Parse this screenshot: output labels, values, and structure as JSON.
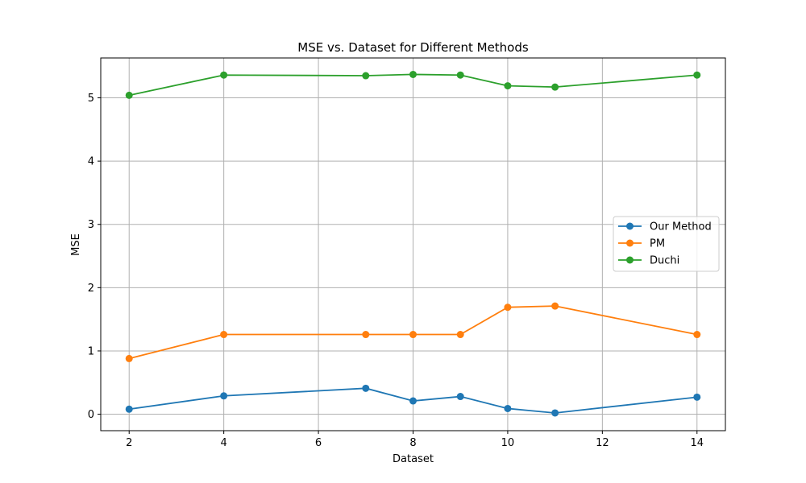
{
  "chart_data": {
    "type": "line",
    "title": "MSE vs. Dataset for Different Methods",
    "xlabel": "Dataset",
    "ylabel": "MSE",
    "x": [
      2,
      4,
      7,
      8,
      9,
      10,
      11,
      14
    ],
    "xticks": [
      2,
      4,
      6,
      8,
      10,
      12,
      14
    ],
    "yticks": [
      0,
      1,
      2,
      3,
      4,
      5
    ],
    "xlim": [
      1.4,
      14.6
    ],
    "ylim": [
      -0.26,
      5.63
    ],
    "grid": true,
    "legend_position": "center-right",
    "series": [
      {
        "name": "Our Method",
        "color": "#1f77b4",
        "values": [
          0.08,
          0.29,
          0.41,
          0.21,
          0.28,
          0.09,
          0.02,
          0.27
        ]
      },
      {
        "name": "PM",
        "color": "#ff7f0e",
        "values": [
          0.88,
          1.26,
          1.26,
          1.26,
          1.26,
          1.69,
          1.71,
          1.26
        ]
      },
      {
        "name": "Duchi",
        "color": "#2ca02c",
        "values": [
          5.04,
          5.36,
          5.35,
          5.37,
          5.36,
          5.19,
          5.17,
          5.36
        ]
      }
    ]
  }
}
